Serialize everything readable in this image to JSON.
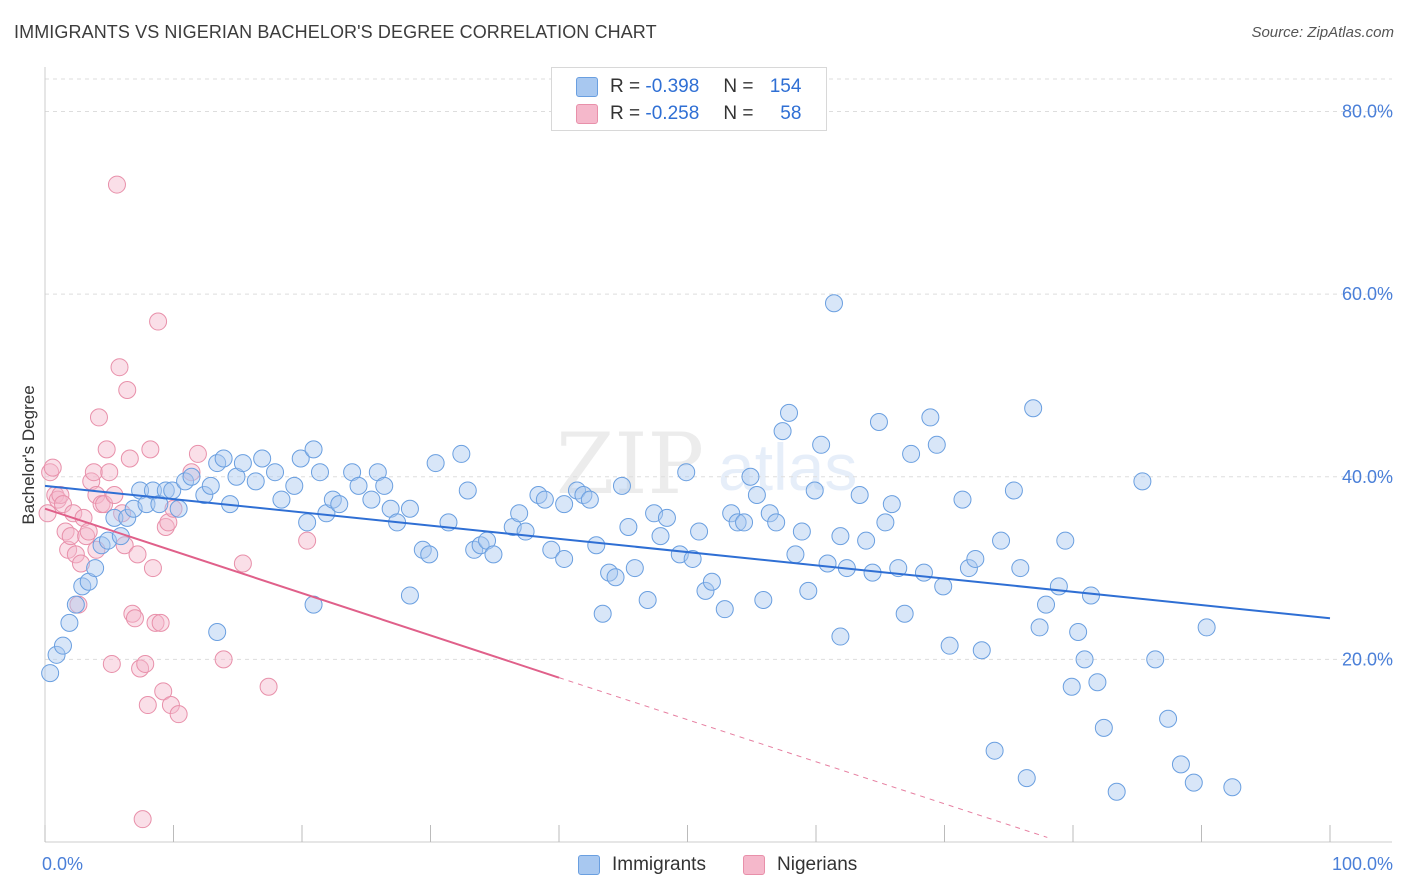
{
  "header": {
    "title": "IMMIGRANTS VS NIGERIAN BACHELOR'S DEGREE CORRELATION CHART",
    "source": "Source: ZipAtlas.com"
  },
  "watermark": {
    "zip": "ZIP",
    "atlas": "atlas"
  },
  "legend": {
    "rows": [
      {
        "r_label": "R =",
        "r_value": "-0.398",
        "n_label": "N =",
        "n_value": "154",
        "color": "#a8c8f0"
      },
      {
        "r_label": "R =",
        "r_value": "-0.258",
        "n_label": "N =",
        "n_value": "58",
        "color": "#f5b8cb"
      }
    ]
  },
  "bottom_legend": {
    "immigrants": "Immigrants",
    "nigerians": "Nigerians"
  },
  "colors": {
    "blue_fill": "#a8c8f0",
    "blue_stroke": "#6a9fe0",
    "blue_line": "#2f6fd4",
    "pink_fill": "#f5b8cb",
    "pink_stroke": "#e890aa",
    "pink_line": "#e0608a",
    "grid": "#dddddd",
    "axis_text": "#4a7fd8"
  },
  "chart_data": {
    "type": "scatter",
    "title": "IMMIGRANTS VS NIGERIAN BACHELOR'S DEGREE CORRELATION CHART",
    "xlabel": "",
    "ylabel": "Bachelor's Degree",
    "xlim": [
      0,
      100
    ],
    "ylim": [
      0,
      84
    ],
    "x_tick_labels": [
      "0.0%",
      "100.0%"
    ],
    "y_ticks": [
      20,
      40,
      60,
      80
    ],
    "y_tick_labels": [
      "20.0%",
      "40.0%",
      "60.0%",
      "80.0%"
    ],
    "legend_position": "top-center",
    "series": [
      {
        "name": "Immigrants",
        "r": -0.398,
        "n": 154,
        "trend": {
          "x0": 0,
          "y0": 39.0,
          "x1": 100,
          "y1": 24.5
        },
        "points": [
          [
            0.4,
            18.5
          ],
          [
            0.9,
            20.5
          ],
          [
            1.4,
            21.5
          ],
          [
            1.9,
            24.0
          ],
          [
            2.4,
            26.0
          ],
          [
            2.9,
            28.0
          ],
          [
            3.4,
            28.5
          ],
          [
            3.9,
            30.0
          ],
          [
            4.4,
            32.5
          ],
          [
            4.9,
            33.0
          ],
          [
            5.4,
            35.5
          ],
          [
            5.9,
            33.5
          ],
          [
            6.4,
            35.5
          ],
          [
            6.9,
            36.5
          ],
          [
            7.4,
            38.5
          ],
          [
            7.9,
            37.0
          ],
          [
            8.4,
            38.5
          ],
          [
            8.9,
            37.0
          ],
          [
            9.4,
            38.5
          ],
          [
            9.9,
            38.5
          ],
          [
            10.4,
            36.5
          ],
          [
            10.9,
            39.5
          ],
          [
            11.4,
            40.0
          ],
          [
            12.4,
            38.0
          ],
          [
            12.9,
            39.0
          ],
          [
            13.4,
            41.5
          ],
          [
            13.9,
            42.0
          ],
          [
            14.4,
            37.0
          ],
          [
            14.9,
            40.0
          ],
          [
            15.4,
            41.5
          ],
          [
            16.4,
            39.5
          ],
          [
            16.9,
            42.0
          ],
          [
            17.9,
            40.5
          ],
          [
            18.4,
            37.5
          ],
          [
            19.4,
            39.0
          ],
          [
            19.9,
            42.0
          ],
          [
            20.4,
            35.0
          ],
          [
            20.9,
            43.0
          ],
          [
            21.4,
            40.5
          ],
          [
            21.9,
            36.0
          ],
          [
            22.4,
            37.5
          ],
          [
            22.9,
            37.0
          ],
          [
            23.9,
            40.5
          ],
          [
            24.4,
            39.0
          ],
          [
            25.4,
            37.5
          ],
          [
            25.9,
            40.5
          ],
          [
            26.4,
            39.0
          ],
          [
            26.9,
            36.5
          ],
          [
            27.4,
            35.0
          ],
          [
            28.4,
            36.5
          ],
          [
            29.4,
            32.0
          ],
          [
            29.9,
            31.5
          ],
          [
            30.4,
            41.5
          ],
          [
            31.4,
            35.0
          ],
          [
            32.4,
            42.5
          ],
          [
            32.9,
            38.5
          ],
          [
            33.4,
            32.0
          ],
          [
            33.9,
            32.5
          ],
          [
            34.4,
            33.0
          ],
          [
            34.9,
            31.5
          ],
          [
            36.4,
            34.5
          ],
          [
            36.9,
            36.0
          ],
          [
            37.4,
            34.0
          ],
          [
            38.4,
            38.0
          ],
          [
            38.9,
            37.5
          ],
          [
            39.4,
            32.0
          ],
          [
            40.4,
            37.0
          ],
          [
            41.4,
            38.5
          ],
          [
            41.9,
            38.0
          ],
          [
            42.4,
            37.5
          ],
          [
            42.9,
            32.5
          ],
          [
            43.9,
            29.5
          ],
          [
            44.4,
            29.0
          ],
          [
            44.9,
            39.0
          ],
          [
            45.4,
            34.5
          ],
          [
            45.9,
            30.0
          ],
          [
            46.9,
            26.5
          ],
          [
            47.4,
            36.0
          ],
          [
            48.4,
            35.5
          ],
          [
            49.4,
            31.5
          ],
          [
            49.9,
            40.5
          ],
          [
            50.4,
            31.0
          ],
          [
            50.9,
            34.0
          ],
          [
            51.4,
            27.5
          ],
          [
            51.9,
            28.5
          ],
          [
            52.9,
            25.5
          ],
          [
            53.4,
            36.0
          ],
          [
            53.9,
            35.0
          ],
          [
            54.4,
            35.0
          ],
          [
            54.9,
            40.0
          ],
          [
            55.4,
            38.0
          ],
          [
            56.4,
            36.0
          ],
          [
            56.9,
            35.0
          ],
          [
            57.4,
            45.0
          ],
          [
            57.9,
            47.0
          ],
          [
            58.4,
            31.5
          ],
          [
            58.9,
            34.0
          ],
          [
            59.4,
            27.5
          ],
          [
            59.9,
            38.5
          ],
          [
            60.4,
            43.5
          ],
          [
            60.9,
            30.5
          ],
          [
            61.4,
            59.0
          ],
          [
            61.9,
            33.5
          ],
          [
            62.4,
            30.0
          ],
          [
            63.4,
            38.0
          ],
          [
            63.9,
            33.0
          ],
          [
            64.4,
            29.5
          ],
          [
            64.9,
            46.0
          ],
          [
            65.4,
            35.0
          ],
          [
            65.9,
            37.0
          ],
          [
            66.4,
            30.0
          ],
          [
            66.9,
            25.0
          ],
          [
            67.4,
            42.5
          ],
          [
            68.4,
            29.5
          ],
          [
            68.9,
            46.5
          ],
          [
            69.4,
            43.5
          ],
          [
            69.9,
            28.0
          ],
          [
            70.4,
            21.5
          ],
          [
            71.4,
            37.5
          ],
          [
            71.9,
            30.0
          ],
          [
            72.4,
            31.0
          ],
          [
            72.9,
            21.0
          ],
          [
            73.9,
            10.0
          ],
          [
            74.4,
            33.0
          ],
          [
            75.4,
            38.5
          ],
          [
            75.9,
            30.0
          ],
          [
            76.4,
            7.0
          ],
          [
            76.9,
            47.5
          ],
          [
            77.4,
            23.5
          ],
          [
            77.9,
            26.0
          ],
          [
            78.9,
            28.0
          ],
          [
            79.4,
            33.0
          ],
          [
            79.9,
            17.0
          ],
          [
            80.4,
            23.0
          ],
          [
            80.9,
            20.0
          ],
          [
            81.4,
            27.0
          ],
          [
            81.9,
            17.5
          ],
          [
            82.4,
            12.5
          ],
          [
            83.4,
            5.5
          ],
          [
            85.4,
            39.5
          ],
          [
            86.4,
            20.0
          ],
          [
            87.4,
            13.5
          ],
          [
            88.4,
            8.5
          ],
          [
            89.4,
            6.5
          ],
          [
            90.4,
            23.5
          ],
          [
            92.4,
            6.0
          ],
          [
            13.4,
            23.0
          ],
          [
            20.9,
            26.0
          ],
          [
            28.4,
            27.0
          ],
          [
            40.4,
            31.0
          ],
          [
            43.4,
            25.0
          ],
          [
            47.9,
            33.5
          ],
          [
            55.9,
            26.5
          ],
          [
            61.9,
            22.5
          ]
        ]
      },
      {
        "name": "Nigerians",
        "r": -0.258,
        "n": 58,
        "trend": {
          "x0": 0,
          "y0": 36.5,
          "x1": 40,
          "y1": 18.0,
          "dash_x1": 78,
          "dash_y1": 0.5
        },
        "points": [
          [
            0.2,
            36.0
          ],
          [
            0.4,
            40.5
          ],
          [
            0.6,
            41.0
          ],
          [
            0.8,
            38.0
          ],
          [
            1.0,
            37.5
          ],
          [
            1.2,
            38.0
          ],
          [
            1.4,
            37.0
          ],
          [
            1.6,
            34.0
          ],
          [
            1.8,
            32.0
          ],
          [
            2.0,
            33.5
          ],
          [
            2.2,
            36.0
          ],
          [
            2.4,
            31.5
          ],
          [
            2.6,
            26.0
          ],
          [
            2.8,
            30.5
          ],
          [
            3.0,
            35.5
          ],
          [
            3.2,
            33.5
          ],
          [
            3.4,
            34.0
          ],
          [
            3.6,
            39.5
          ],
          [
            3.8,
            40.5
          ],
          [
            4.0,
            38.0
          ],
          [
            4.2,
            46.5
          ],
          [
            4.4,
            37.0
          ],
          [
            4.6,
            37.0
          ],
          [
            4.8,
            43.0
          ],
          [
            5.0,
            40.5
          ],
          [
            5.2,
            19.5
          ],
          [
            5.4,
            38.0
          ],
          [
            5.6,
            72.0
          ],
          [
            5.8,
            52.0
          ],
          [
            6.0,
            36.0
          ],
          [
            6.2,
            32.5
          ],
          [
            6.4,
            49.5
          ],
          [
            6.6,
            42.0
          ],
          [
            6.8,
            25.0
          ],
          [
            7.0,
            24.5
          ],
          [
            7.2,
            31.5
          ],
          [
            7.4,
            19.0
          ],
          [
            7.6,
            2.5
          ],
          [
            7.8,
            19.5
          ],
          [
            8.0,
            15.0
          ],
          [
            8.2,
            43.0
          ],
          [
            8.4,
            30.0
          ],
          [
            8.6,
            24.0
          ],
          [
            8.8,
            57.0
          ],
          [
            9.0,
            24.0
          ],
          [
            9.2,
            16.5
          ],
          [
            9.4,
            34.5
          ],
          [
            9.6,
            35.0
          ],
          [
            9.8,
            15.0
          ],
          [
            10.0,
            36.5
          ],
          [
            10.4,
            14.0
          ],
          [
            11.4,
            40.5
          ],
          [
            11.9,
            42.5
          ],
          [
            13.9,
            20.0
          ],
          [
            15.4,
            30.5
          ],
          [
            17.4,
            17.0
          ],
          [
            20.4,
            33.0
          ],
          [
            4.0,
            32.0
          ]
        ]
      }
    ]
  }
}
